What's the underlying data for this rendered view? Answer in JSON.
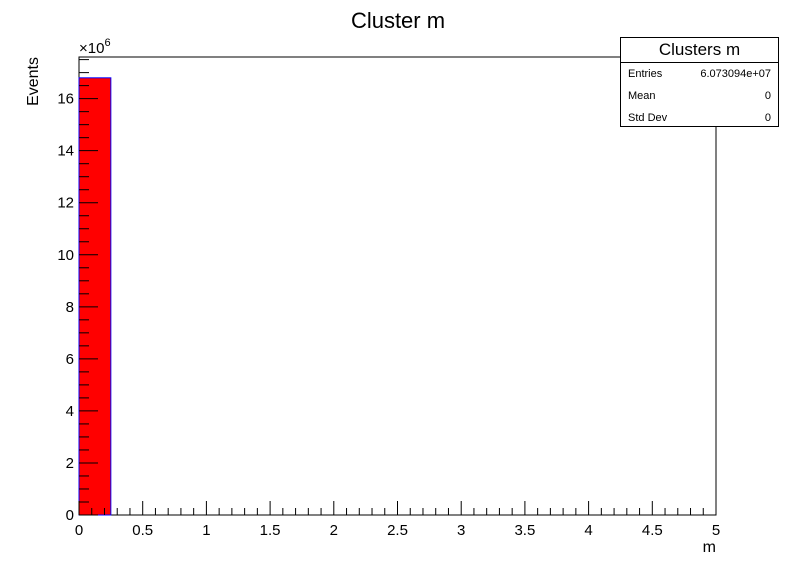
{
  "chart_data": {
    "type": "bar",
    "title": "Cluster m",
    "xlabel": "m",
    "ylabel": "Events",
    "y_multiplier": "×10",
    "y_multiplier_exponent": "6",
    "xlim": [
      0,
      5
    ],
    "ylim": [
      0,
      17.6
    ],
    "bin_width": 0.25,
    "bins": [
      {
        "x0": 0,
        "x1": 0.25,
        "value": 16.8
      }
    ],
    "x_ticks": [
      "0",
      "0.5",
      "1",
      "1.5",
      "2",
      "2.5",
      "3",
      "3.5",
      "4",
      "4.5",
      "5"
    ],
    "y_ticks": [
      "0",
      "2",
      "4",
      "6",
      "8",
      "10",
      "12",
      "14",
      "16"
    ],
    "fill_color": "#ff0000",
    "line_color": "#0000ff",
    "grid": false,
    "legend": "none"
  },
  "stats": {
    "title": "Clusters m",
    "rows": [
      {
        "name": "Entries",
        "value": "6.073094e+07"
      },
      {
        "name": "Mean",
        "value": "0"
      },
      {
        "name": "Std Dev",
        "value": "0"
      }
    ]
  }
}
